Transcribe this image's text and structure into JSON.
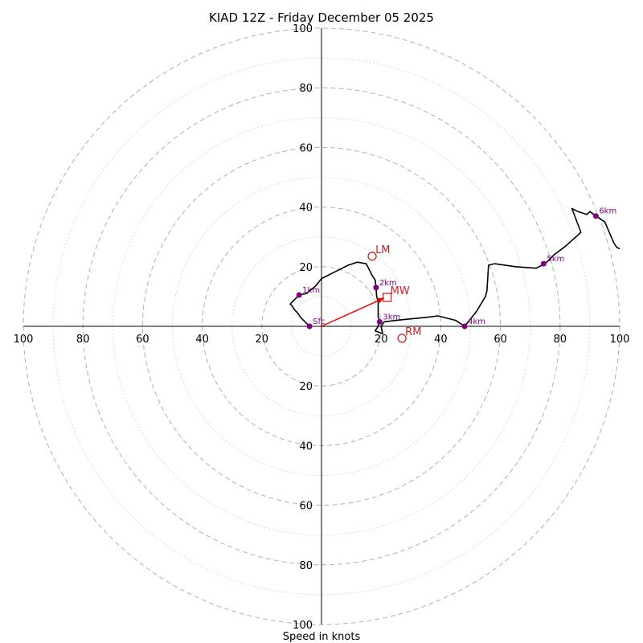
{
  "chart_data": {
    "type": "hodograph",
    "title": "KIAD 12Z - Friday December 05 2025",
    "xlabel": "Speed in knots",
    "units": "knots",
    "range": [
      -100,
      100
    ],
    "rings_major": [
      20,
      40,
      60,
      80,
      100
    ],
    "rings_minor": [
      10,
      30,
      50,
      70,
      90
    ],
    "axis_ticks": {
      "left": [
        "100",
        "80",
        "60",
        "40",
        "20"
      ],
      "right": [
        "20",
        "40",
        "60",
        "80",
        "100"
      ],
      "top": [
        "100",
        "80",
        "60",
        "40",
        "20"
      ],
      "bottom": [
        "20",
        "40",
        "60",
        "80",
        "100"
      ]
    },
    "grid": true,
    "colors": {
      "trace": "#000000",
      "height_marker": "#800080",
      "storm_motion": "#cc2222",
      "mean_wind_vector": "#ee0000",
      "grid": "#b0b0b0"
    },
    "trace": [
      [
        -4,
        0
      ],
      [
        -5,
        1
      ],
      [
        -6,
        2
      ],
      [
        -7,
        3
      ],
      [
        -8,
        4.5
      ],
      [
        -9,
        5.5
      ],
      [
        -10,
        7
      ],
      [
        -10.5,
        7.5
      ],
      [
        -9,
        9
      ],
      [
        -7.5,
        10.5
      ],
      [
        -5,
        11
      ],
      [
        -2,
        13.5
      ],
      [
        0,
        16
      ],
      [
        4,
        18
      ],
      [
        9,
        20.5
      ],
      [
        12,
        21.5
      ],
      [
        15,
        21
      ],
      [
        16,
        19
      ],
      [
        17,
        17
      ],
      [
        18,
        15.5
      ],
      [
        18.3,
        13
      ],
      [
        18.5,
        10
      ],
      [
        19,
        8.5
      ],
      [
        19,
        3
      ],
      [
        19.5,
        2
      ],
      [
        19,
        0
      ],
      [
        18,
        -1.5
      ],
      [
        20.5,
        -2.5
      ],
      [
        20,
        0
      ],
      [
        21,
        1.5
      ],
      [
        25,
        2
      ],
      [
        30,
        2.5
      ],
      [
        35,
        3
      ],
      [
        39,
        3.5
      ],
      [
        45,
        2
      ],
      [
        48,
        0
      ],
      [
        52,
        5
      ],
      [
        55,
        10
      ],
      [
        55.5,
        12
      ],
      [
        56,
        20.5
      ],
      [
        58,
        21
      ],
      [
        65,
        20
      ],
      [
        72,
        19.5
      ],
      [
        75,
        21
      ],
      [
        78,
        24
      ],
      [
        82,
        27
      ],
      [
        87,
        31.5
      ],
      [
        84,
        39.5
      ],
      [
        86,
        38.5
      ],
      [
        89,
        37.5
      ],
      [
        90,
        38.5
      ],
      [
        92,
        37
      ],
      [
        95,
        35
      ],
      [
        98,
        28
      ],
      [
        99,
        26.5
      ],
      [
        100,
        26
      ]
    ],
    "height_labels": [
      {
        "label": "Sfc",
        "u": -4,
        "v": 0
      },
      {
        "label": "1km",
        "u": -7.5,
        "v": 10.5
      },
      {
        "label": "2km",
        "u": 18.3,
        "v": 13
      },
      {
        "label": "3km",
        "u": 19.5,
        "v": 1.5
      },
      {
        "label": "4km",
        "u": 48,
        "v": 0
      },
      {
        "label": "5km",
        "u": 74.5,
        "v": 21
      },
      {
        "label": "6km",
        "u": 92,
        "v": 37
      }
    ],
    "storm_motion": [
      {
        "label": "LM",
        "u": 17,
        "v": 23.5,
        "marker": "circle"
      },
      {
        "label": "RM",
        "u": 27,
        "v": -4,
        "marker": "circle"
      },
      {
        "label": "MW",
        "u": 22,
        "v": 9.7,
        "marker": "square"
      }
    ],
    "mean_wind_vector": {
      "from": [
        0,
        0
      ],
      "to": [
        21,
        9.5
      ]
    }
  }
}
